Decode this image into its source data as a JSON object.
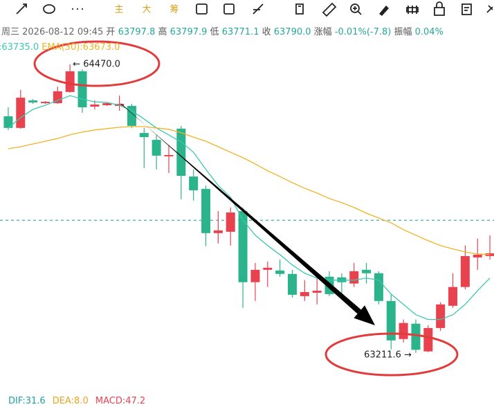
{
  "toolbar": {
    "buttons": [
      "主",
      "大",
      "筹"
    ]
  },
  "chart_data": {
    "type": "candlestick",
    "info": {
      "date": "周三 2026-08-12 09:45",
      "items": [
        {
          "label": "开",
          "value": "63797.8"
        },
        {
          "label": "高",
          "value": "63797.9"
        },
        {
          "label": "低",
          "value": "63771.1"
        },
        {
          "label": "收",
          "value": "63790.0"
        },
        {
          "label": "涨幅",
          "value": "-0.01%(-7.8)"
        },
        {
          "label": "振幅",
          "value": "0.04%"
        }
      ]
    },
    "ylim": [
      63060,
      64570
    ],
    "up_color": "#e8424f",
    "down_color": "#2bb38b",
    "candles": [
      [
        64244,
        64283,
        64184,
        64193
      ],
      [
        64193,
        64359,
        64190,
        64325
      ],
      [
        64313,
        64319,
        64298,
        64304
      ],
      [
        64301,
        64310,
        64298,
        64307
      ],
      [
        64301,
        64374,
        64298,
        64353
      ],
      [
        64350,
        64470,
        64347,
        64440
      ],
      [
        64440,
        64449,
        64259,
        64283
      ],
      [
        64286,
        64313,
        64274,
        64295
      ],
      [
        64292,
        64304,
        64289,
        64301
      ],
      [
        64289,
        64334,
        64268,
        64298
      ],
      [
        64289,
        64298,
        64193,
        64202
      ],
      [
        64171,
        64193,
        64018,
        64153
      ],
      [
        64141,
        64162,
        64012,
        64072
      ],
      [
        64069,
        64117,
        63996,
        64075
      ],
      [
        64190,
        64202,
        63882,
        63984
      ],
      [
        63981,
        64012,
        63876,
        63921
      ],
      [
        63927,
        63942,
        63677,
        63734
      ],
      [
        63734,
        63830,
        63689,
        63746
      ],
      [
        63740,
        63846,
        63680,
        63824
      ],
      [
        63830,
        63846,
        63408,
        63520
      ],
      [
        63520,
        63604,
        63438,
        63574
      ],
      [
        63574,
        63610,
        63499,
        63583
      ],
      [
        63571,
        63619,
        63544,
        63556
      ],
      [
        63556,
        63574,
        63453,
        63465
      ],
      [
        63459,
        63529,
        63438,
        63477
      ],
      [
        63474,
        63559,
        63423,
        63483
      ],
      [
        63544,
        63568,
        63459,
        63468
      ],
      [
        63541,
        63559,
        63468,
        63520
      ],
      [
        63514,
        63604,
        63499,
        63568
      ],
      [
        63574,
        63604,
        63514,
        63559
      ],
      [
        63559,
        63568,
        63423,
        63438
      ],
      [
        63438,
        63468,
        63227,
        63266
      ],
      [
        63272,
        63357,
        63257,
        63342
      ],
      [
        63339,
        63357,
        63211.6,
        63225
      ],
      [
        63218,
        63332,
        63215,
        63320
      ],
      [
        63320,
        63432,
        63308,
        63423
      ],
      [
        63417,
        63559,
        63408,
        63499
      ],
      [
        63499,
        63680,
        63489,
        63634
      ],
      [
        63628,
        63710,
        63574,
        63640
      ],
      [
        63634,
        63725,
        63619,
        63646
      ]
    ],
    "series": [
      {
        "label": ":63735.0",
        "color": "#3cc8b0",
        "values": [
          64193,
          64238,
          64274,
          64292,
          64313,
          64334,
          64319,
          64307,
          64304,
          64292,
          64268,
          64232,
          64193,
          64162,
          64132,
          64087,
          64012,
          63942,
          63891,
          63791,
          63725,
          63680,
          63640,
          63595,
          63559,
          63538,
          63529,
          63529,
          63529,
          63538,
          63529,
          63468,
          63423,
          63378,
          63357,
          63357,
          63378,
          63423,
          63483,
          63538
        ]
      },
      {
        "label": "EMA(30):63673.0",
        "color": "#f0b323",
        "values": [
          64102,
          64111,
          64123,
          64135,
          64147,
          64163,
          64175,
          64184,
          64190,
          64196,
          64199,
          64199,
          64193,
          64187,
          64172,
          64153,
          64135,
          64111,
          64087,
          64063,
          64036,
          64006,
          63981,
          63954,
          63930,
          63909,
          63885,
          63867,
          63846,
          63821,
          63800,
          63779,
          63749,
          63725,
          63701,
          63680,
          63665,
          63652,
          63643,
          63640
        ]
      }
    ],
    "last_price": 63790.0,
    "annotations": {
      "high": "← 64470.0",
      "low": "63211.6 →"
    },
    "macd": [
      {
        "text": "DIF:31.6",
        "color": "#1aa3a3"
      },
      {
        "text": "DEA:8.0",
        "color": "#f0a020"
      },
      {
        "text": "MACD:47.2",
        "color": "#e8424f"
      }
    ]
  }
}
